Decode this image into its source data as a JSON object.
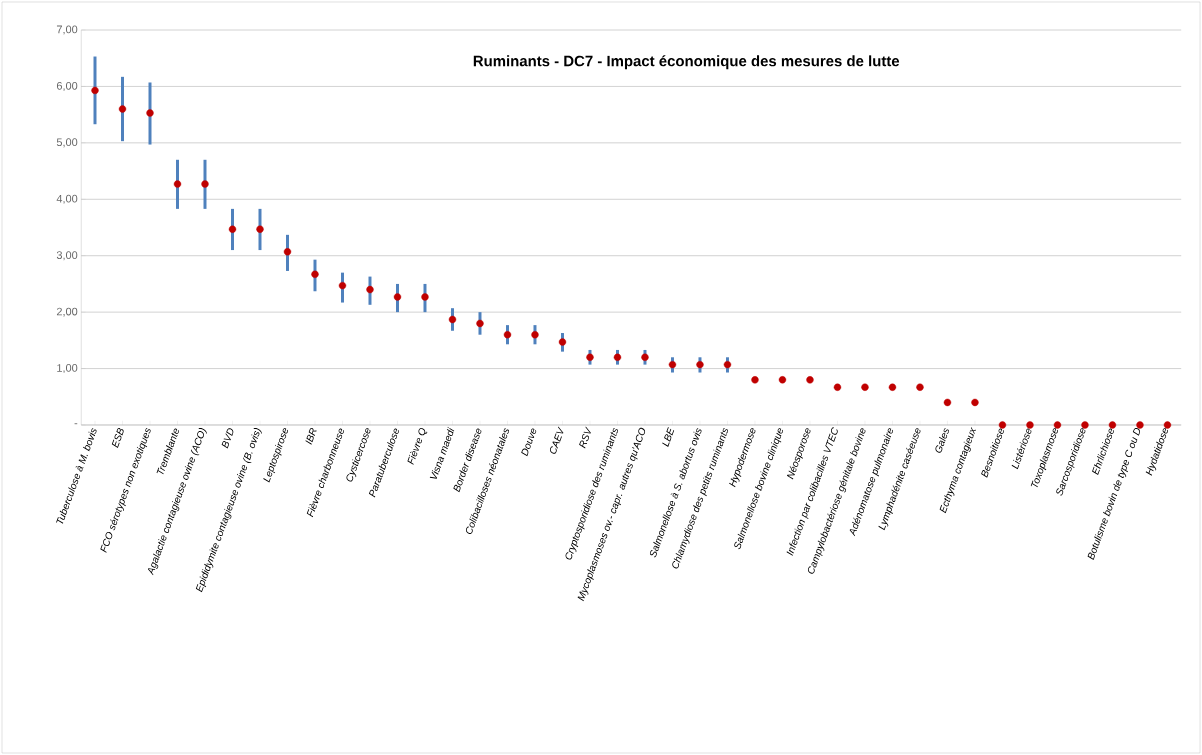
{
  "chart_data": {
    "type": "scatter",
    "title": "Ruminants - DC7 - Impact économique des mesures de lutte",
    "categories": [
      "Tuberculose à M. bovis",
      "ESB",
      "FCO sérotypes non exotiques",
      "Tremblante",
      "Agalactie contagieuse ovine (ACO)",
      "BVD",
      "Epididymite contagieuse ovine (B. ovis)",
      "Leptospirose",
      "IBR",
      "Fièvre charbonneuse",
      "Cysticercose",
      "Paratuberculose",
      "Fièvre Q",
      "Visna maedi",
      "Border disease",
      "Colibacilloses néonatales",
      "Douve",
      "CAEV",
      "RSV",
      "Cryptosporidiose des ruminants",
      "Mycoplasmoses ov.- capr. autres qu'ACO",
      "LBE",
      "Salmonellose à S. abortus ovis",
      "Chlamydiose des petits ruminants",
      "Hypodermose",
      "Salmonellose bovine clinique",
      "Néosporose",
      "Infection par colibacilles VTEC",
      "Campylobactériose génitale bovine",
      "Adénomatose pulmonaire",
      "Lymphadénite caséeuse",
      "Gales",
      "Ecthyma contagieux",
      "Besnoitiose",
      "Listériose",
      "Toxoplasmose",
      "Sarcosporidiose",
      "Ehrlichiose",
      "Botulisme bovin de type C ou D",
      "Hydatidose"
    ],
    "series": [
      {
        "color": "#c00000",
        "values": [
          5.93,
          5.6,
          5.53,
          4.27,
          4.27,
          3.47,
          3.47,
          3.07,
          2.67,
          2.47,
          2.4,
          2.27,
          2.27,
          1.87,
          1.8,
          1.6,
          1.6,
          1.47,
          1.2,
          1.2,
          1.2,
          1.07,
          1.07,
          1.07,
          0.8,
          0.8,
          0.8,
          0.67,
          0.67,
          0.67,
          0.67,
          0.4,
          0.4,
          0,
          0,
          0,
          0,
          0,
          0,
          0
        ],
        "errors": [
          [
            5.33,
            6.53
          ],
          [
            5.03,
            6.17
          ],
          [
            4.97,
            6.07
          ],
          [
            3.83,
            4.7
          ],
          [
            3.83,
            4.7
          ],
          [
            3.1,
            3.83
          ],
          [
            3.1,
            3.83
          ],
          [
            2.73,
            3.37
          ],
          [
            2.37,
            2.93
          ],
          [
            2.17,
            2.7
          ],
          [
            2.13,
            2.63
          ],
          [
            2.0,
            2.5
          ],
          [
            2.0,
            2.5
          ],
          [
            1.67,
            2.07
          ],
          [
            1.6,
            2.0
          ],
          [
            1.43,
            1.77
          ],
          [
            1.43,
            1.77
          ],
          [
            1.3,
            1.63
          ],
          [
            1.07,
            1.33
          ],
          [
            1.07,
            1.33
          ],
          [
            1.07,
            1.33
          ],
          [
            0.93,
            1.2
          ],
          [
            0.93,
            1.2
          ],
          [
            0.93,
            1.2
          ],
          null,
          null,
          null,
          null,
          null,
          null,
          null,
          null,
          null,
          null,
          null,
          null,
          null,
          null,
          null,
          null
        ]
      }
    ],
    "ylim": [
      0,
      7
    ],
    "yticks": [
      {
        "value": 0,
        "label": "-"
      },
      {
        "value": 1,
        "label": "1,00"
      },
      {
        "value": 2,
        "label": "2,00"
      },
      {
        "value": 3,
        "label": "3,00"
      },
      {
        "value": 4,
        "label": "4,00"
      },
      {
        "value": 5,
        "label": "5,00"
      },
      {
        "value": 6,
        "label": "6,00"
      },
      {
        "value": 7,
        "label": "7,00"
      }
    ],
    "grid": "y",
    "marker": "circle"
  }
}
